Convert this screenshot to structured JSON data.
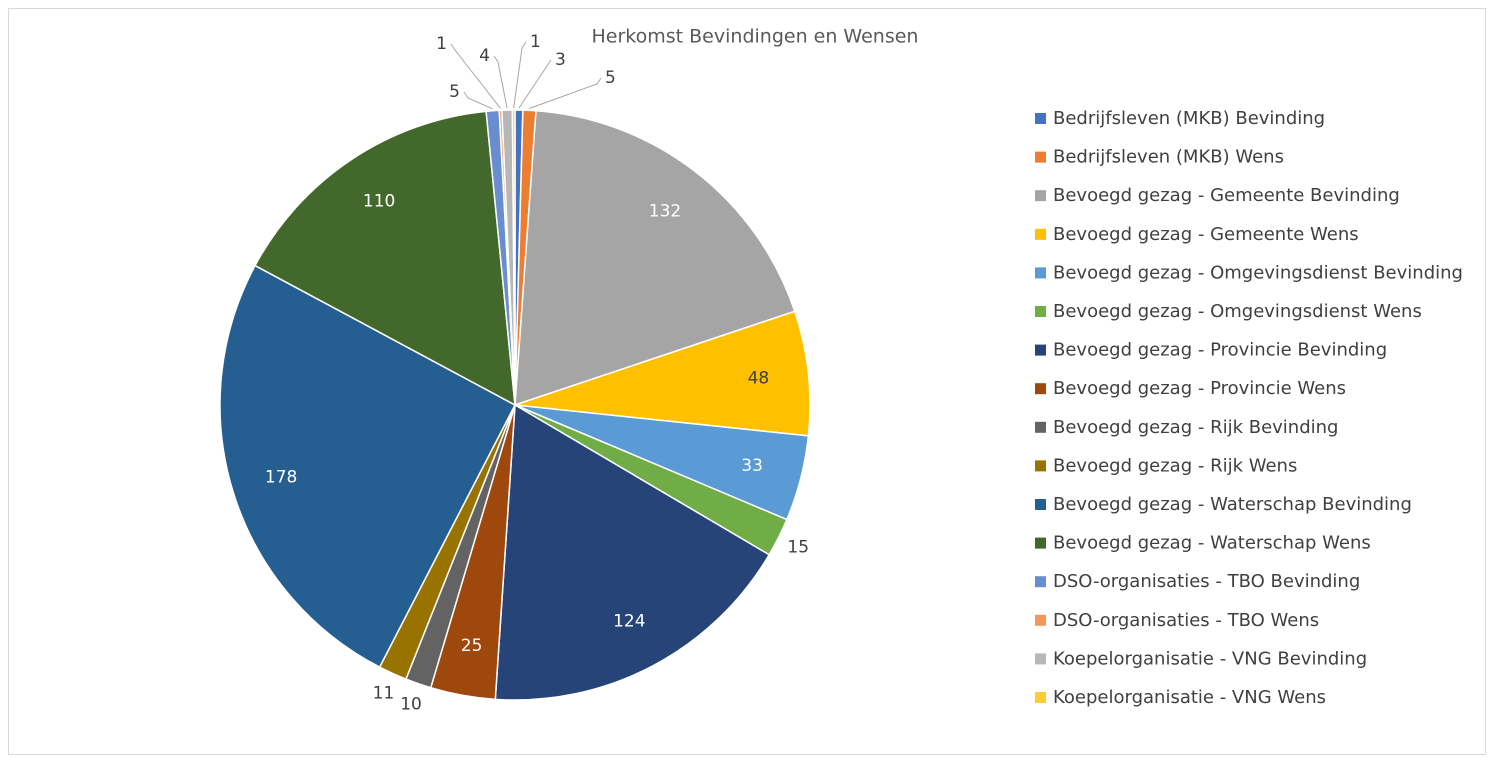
{
  "chart_data": {
    "type": "pie",
    "title": "Herkomst Bevindingen en Wensen",
    "categories": [
      "Bedrijfsleven (MKB) Bevinding",
      "Bedrijfsleven (MKB) Wens",
      "Bevoegd gezag - Gemeente Bevinding",
      "Bevoegd gezag - Gemeente Wens",
      "Bevoegd gezag - Omgevingsdienst Bevinding",
      "Bevoegd gezag - Omgevingsdienst Wens",
      "Bevoegd gezag - Provincie Bevinding",
      "Bevoegd gezag - Provincie Wens",
      "Bevoegd gezag - Rijk Bevinding",
      "Bevoegd gezag - Rijk Wens",
      "Bevoegd gezag - Waterschap Bevinding",
      "Bevoegd gezag - Waterschap Wens",
      "DSO-organisaties - TBO Bevinding",
      "DSO-organisaties - TBO Wens",
      "Koepelorganisatie - VNG Bevinding",
      "Koepelorganisatie - VNG Wens"
    ],
    "values": [
      3,
      5,
      132,
      48,
      33,
      15,
      124,
      25,
      10,
      11,
      178,
      110,
      5,
      1,
      4,
      1
    ],
    "colors": [
      "#4472C4",
      "#ED7D31",
      "#A5A5A5",
      "#FFC000",
      "#5B9BD5",
      "#70AD47",
      "#264478",
      "#9E480E",
      "#636363",
      "#997300",
      "#255E91",
      "#43682B",
      "#698ED0",
      "#F1975A",
      "#B7B7B7",
      "#FFCD33"
    ],
    "legend": "right"
  }
}
